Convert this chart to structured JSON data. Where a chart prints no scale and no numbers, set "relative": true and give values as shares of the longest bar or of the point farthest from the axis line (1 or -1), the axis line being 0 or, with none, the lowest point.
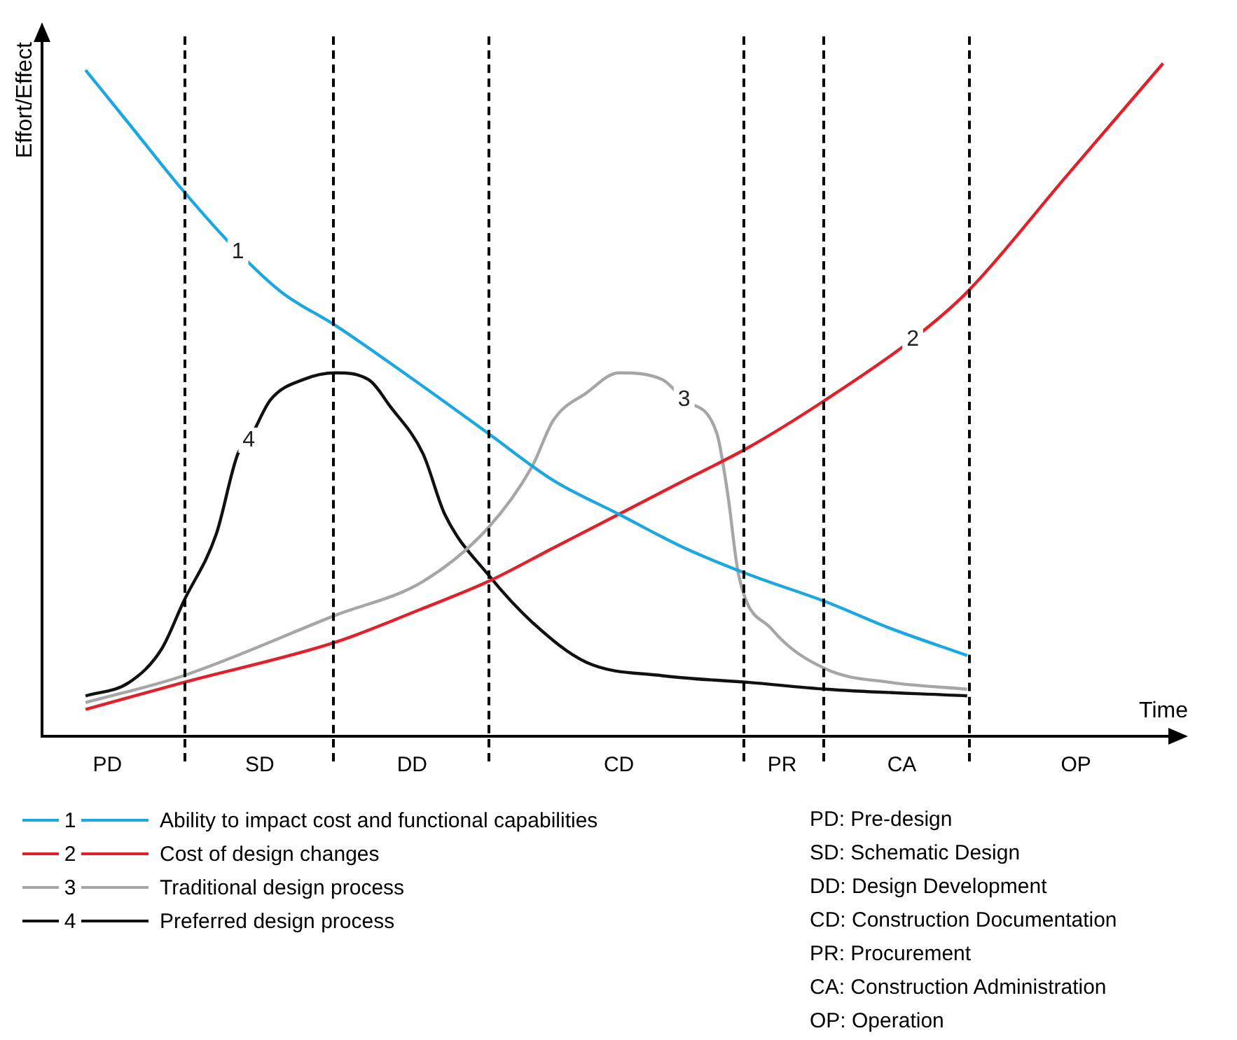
{
  "chart_data": {
    "type": "line",
    "relative": true,
    "xlabel": "Time",
    "ylabel": "Effort/Effect",
    "categories": [
      null,
      null,
      null,
      null,
      null,
      null,
      "PD",
      null,
      null,
      null,
      null,
      null,
      null,
      null,
      null,
      null,
      null,
      null,
      null,
      null,
      "SD",
      null,
      null,
      null,
      null,
      null,
      null,
      null,
      null,
      null,
      null,
      null,
      null,
      null,
      "DD",
      null,
      null,
      null,
      null,
      null,
      null,
      null,
      null,
      null,
      null,
      null,
      null,
      null,
      null,
      null,
      null,
      null,
      null,
      "CD",
      null,
      null,
      null,
      null,
      null,
      null,
      null,
      null,
      null,
      null,
      null,
      null,
      null,
      null,
      "PR",
      null,
      null,
      null,
      null,
      null,
      null,
      null,
      null,
      null,
      null,
      "CA",
      null,
      null,
      null,
      null,
      null,
      null,
      null,
      null,
      null,
      null,
      null,
      null,
      null,
      null,
      null,
      "OP",
      null,
      null,
      null,
      null,
      null,
      null,
      null,
      null,
      null
    ],
    "grid": false,
    "legend": "bottom",
    "marker": "none",
    "line_style": "solid",
    "series": [
      {
        "name": "Ability to impact cost and functional capabilities",
        "color": "#1ba8e0",
        "values": [
          null,
          null,
          null,
          null,
          0.99,
          null,
          null,
          null,
          0.91,
          null,
          null,
          null,
          null,
          0.81,
          null,
          null,
          null,
          null,
          0.72,
          null,
          null,
          null,
          0.66,
          null,
          null,
          null,
          null,
          0.61,
          null,
          null,
          null,
          null,
          null,
          null,
          null,
          0.52,
          null,
          null,
          null,
          null,
          null,
          0.45,
          null,
          null,
          null,
          null,
          null,
          0.38,
          null,
          null,
          null,
          null,
          null,
          0.33,
          null,
          null,
          null,
          null,
          null,
          0.28,
          null,
          null,
          null,
          null,
          null,
          0.24,
          null,
          null,
          null,
          null,
          null,
          null,
          0.2,
          null,
          null,
          null,
          null,
          null,
          0.16,
          null,
          null,
          null,
          null,
          null,
          null,
          0.12,
          null,
          null,
          null,
          null,
          null,
          null,
          null,
          null,
          null,
          null,
          null,
          null,
          null,
          null,
          null,
          null,
          null,
          null,
          null
        ]
      },
      {
        "name": "Cost of design changes",
        "color": "#e3202a",
        "values": [
          null,
          null,
          null,
          null,
          0.04,
          null,
          null,
          null,
          null,
          null,
          null,
          null,
          null,
          0.08,
          null,
          null,
          null,
          null,
          null,
          null,
          null,
          null,
          null,
          null,
          null,
          null,
          null,
          0.14,
          null,
          null,
          null,
          null,
          null,
          null,
          null,
          0.19,
          null,
          null,
          null,
          null,
          null,
          0.23,
          null,
          null,
          null,
          null,
          null,
          0.28,
          null,
          null,
          null,
          null,
          null,
          0.33,
          null,
          null,
          null,
          null,
          null,
          0.38,
          null,
          null,
          null,
          null,
          null,
          0.43,
          null,
          null,
          null,
          null,
          null,
          null,
          0.5,
          null,
          null,
          null,
          null,
          null,
          null,
          null,
          0.59,
          null,
          null,
          null,
          null,
          0.66,
          null,
          null,
          null,
          null,
          null,
          null,
          null,
          null,
          0.83,
          null,
          null,
          null,
          null,
          null,
          null,
          null,
          null,
          1.0,
          null
        ]
      },
      {
        "name": "Traditional design process",
        "color": "#a6a6a6",
        "values": [
          null,
          null,
          null,
          null,
          0.05,
          null,
          null,
          null,
          null,
          null,
          null,
          null,
          null,
          0.09,
          null,
          null,
          null,
          null,
          null,
          null,
          null,
          null,
          null,
          null,
          null,
          null,
          null,
          0.18,
          null,
          null,
          null,
          null,
          null,
          null,
          null,
          0.23,
          null,
          null,
          null,
          null,
          null,
          0.31,
          null,
          null,
          null,
          0.4,
          null,
          0.47,
          null,
          null,
          0.51,
          null,
          null,
          0.54,
          null,
          null,
          null,
          0.53,
          null,
          0.5,
          null,
          null,
          0.45,
          0.36,
          0.24,
          null,
          null,
          0.16,
          null,
          null,
          null,
          null,
          0.1,
          null,
          null,
          null,
          null,
          null,
          0.08,
          null,
          null,
          null,
          null,
          null,
          null,
          0.07,
          null,
          null,
          null,
          null,
          null,
          null,
          null,
          null,
          null,
          null,
          null,
          null,
          null,
          null,
          null,
          null,
          null,
          null,
          null
        ]
      },
      {
        "name": "Preferred design process",
        "color": "#111111",
        "values": [
          null,
          null,
          null,
          null,
          0.06,
          null,
          null,
          null,
          0.08,
          null,
          null,
          0.13,
          null,
          0.2,
          null,
          null,
          0.3,
          null,
          0.42,
          0.44,
          null,
          0.5,
          null,
          null,
          0.53,
          null,
          null,
          0.54,
          null,
          null,
          0.53,
          null,
          0.49,
          null,
          null,
          0.42,
          null,
          0.33,
          null,
          null,
          null,
          0.24,
          null,
          null,
          null,
          0.17,
          null,
          null,
          null,
          null,
          0.11,
          null,
          null,
          null,
          null,
          null,
          null,
          0.09,
          null,
          null,
          null,
          null,
          null,
          null,
          null,
          0.08,
          null,
          null,
          null,
          null,
          null,
          null,
          0.07,
          null,
          null,
          null,
          null,
          null,
          null,
          null,
          null,
          null,
          null,
          null,
          null,
          0.06,
          null,
          null,
          null,
          null,
          null,
          null,
          null,
          null,
          null,
          null,
          null,
          null,
          null,
          null,
          null,
          null,
          null,
          null,
          null
        ]
      }
    ],
    "annotations": [
      {
        "text": "1",
        "y": 0.72
      },
      {
        "text": "2",
        "y": 0.59
      },
      {
        "text": "3",
        "y": 0.5
      },
      {
        "text": "4",
        "y": 0.44
      },
      "PD: Pre-design",
      "SD: Schematic Design",
      "DD: Design Development",
      "CD: Construction Documentation",
      "PR: Procurement",
      "CA: Construction Administration",
      "OP: Operation"
    ]
  }
}
